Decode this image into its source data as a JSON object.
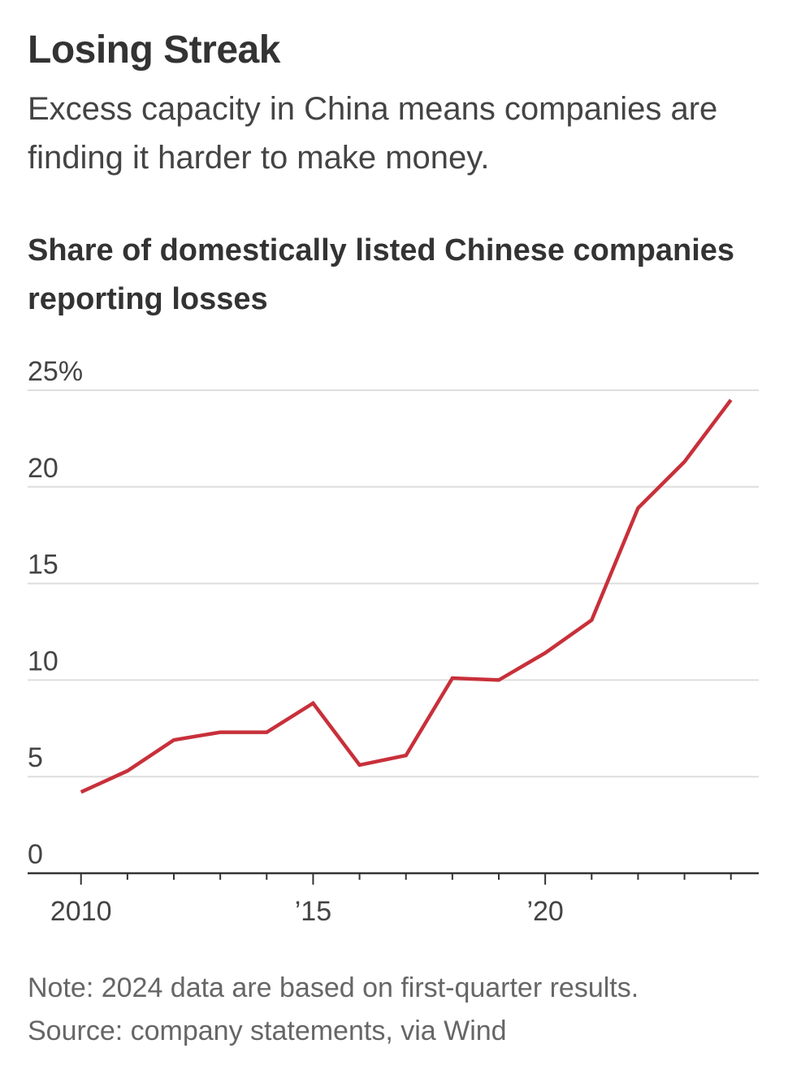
{
  "header": {
    "title": "Losing Streak",
    "subtitle": "Excess capacity in China means companies are finding it harder to make money."
  },
  "chart_data": {
    "type": "line",
    "title": "Share of domestically listed Chinese companies reporting losses",
    "xlabel": "",
    "ylabel": "",
    "x": [
      2010,
      2011,
      2012,
      2013,
      2014,
      2015,
      2016,
      2017,
      2018,
      2019,
      2020,
      2021,
      2022,
      2023,
      2024
    ],
    "series": [
      {
        "name": "Share reporting losses",
        "color": "#c8303a",
        "values": [
          4.2,
          5.3,
          6.9,
          7.3,
          7.3,
          8.8,
          5.6,
          6.1,
          10.1,
          10.0,
          11.4,
          13.1,
          18.9,
          21.3,
          24.5
        ]
      }
    ],
    "xlim": [
      2008.85,
      2024.6
    ],
    "ylim": [
      0,
      25
    ],
    "y_ticks": [
      {
        "value": 25,
        "label": "25%"
      },
      {
        "value": 20,
        "label": "20"
      },
      {
        "value": 15,
        "label": "15"
      },
      {
        "value": 10,
        "label": "10"
      },
      {
        "value": 5,
        "label": "5"
      },
      {
        "value": 0,
        "label": "0"
      }
    ],
    "x_ticks": [
      {
        "value": 2010,
        "label": "2010"
      },
      {
        "value": 2015,
        "label": "’15"
      },
      {
        "value": 2020,
        "label": "’20"
      }
    ],
    "grid": true
  },
  "footer": {
    "note": "Note: 2024 data are based on first-quarter results.",
    "source": "Source: company statements, via Wind"
  }
}
